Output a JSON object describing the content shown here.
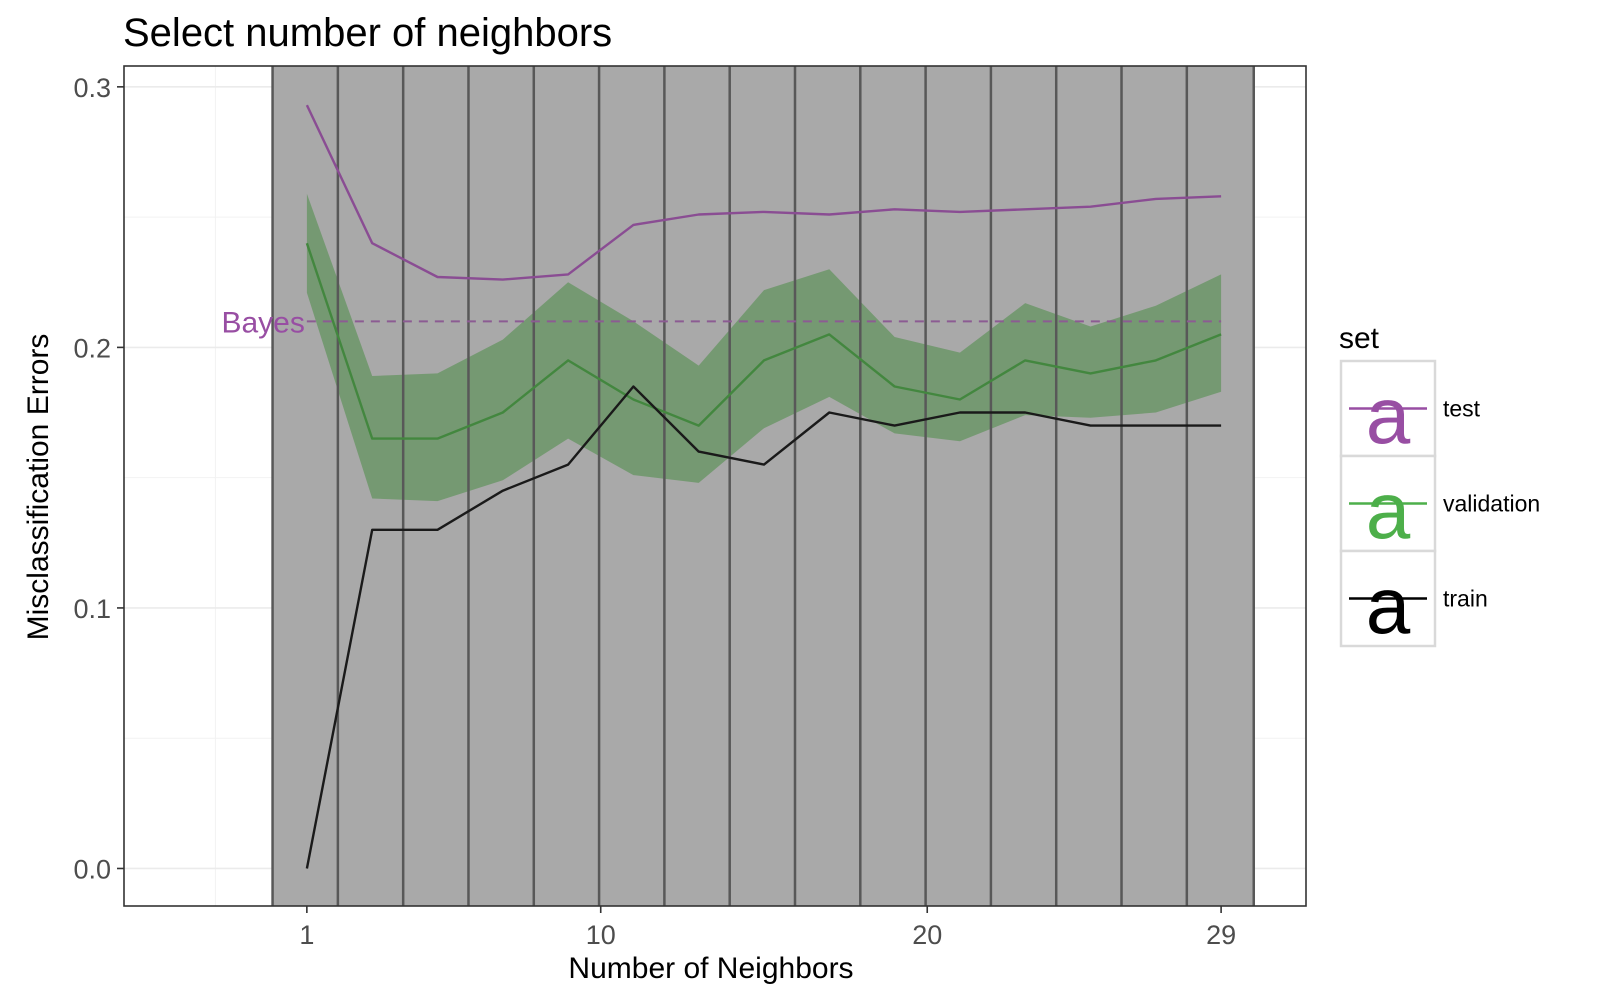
{
  "chart_data": {
    "type": "line",
    "title": "Select number of neighbors",
    "xlabel": "Number of Neighbors",
    "ylabel": "Misclassification Errors",
    "xlim": [
      -4.6,
      31.6
    ],
    "ylim": [
      -0.0144,
      0.308
    ],
    "x_ticks": [
      1,
      10,
      20,
      29
    ],
    "x_tick_labels": [
      "1",
      "10",
      "20",
      "29"
    ],
    "y_ticks": [
      0.0,
      0.1,
      0.2,
      0.3
    ],
    "y_tick_labels": [
      "0.0",
      "0.1",
      "0.2",
      "0.3"
    ],
    "grid": true,
    "x": [
      1,
      3,
      5,
      7,
      9,
      11,
      13,
      15,
      17,
      19,
      21,
      23,
      25,
      27,
      29
    ],
    "series": [
      {
        "name": "test",
        "color": "#984ea3",
        "values": [
          0.293,
          0.24,
          0.227,
          0.226,
          0.228,
          0.247,
          0.251,
          0.252,
          0.251,
          0.253,
          0.252,
          0.253,
          0.254,
          0.257,
          0.258
        ]
      },
      {
        "name": "validation",
        "color": "#4daf4a",
        "values": [
          0.24,
          0.165,
          0.165,
          0.175,
          0.195,
          0.18,
          0.17,
          0.195,
          0.205,
          0.185,
          0.18,
          0.195,
          0.19,
          0.195,
          0.205
        ],
        "band_lower": [
          0.221,
          0.142,
          0.141,
          0.149,
          0.165,
          0.151,
          0.148,
          0.169,
          0.181,
          0.167,
          0.164,
          0.174,
          0.173,
          0.175,
          0.183
        ],
        "band_upper": [
          0.259,
          0.189,
          0.19,
          0.203,
          0.225,
          0.21,
          0.193,
          0.222,
          0.23,
          0.204,
          0.198,
          0.217,
          0.208,
          0.216,
          0.228
        ]
      },
      {
        "name": "train",
        "color": "#000000",
        "values": [
          0.0,
          0.13,
          0.13,
          0.145,
          0.155,
          0.185,
          0.16,
          0.155,
          0.175,
          0.17,
          0.175,
          0.175,
          0.17,
          0.17,
          0.17
        ]
      }
    ],
    "reference_line": {
      "label": "Bayes",
      "value": 0.21,
      "color": "#984ea3",
      "style": "dashed"
    },
    "shaded_region": {
      "x_from": -0.05,
      "x_to": 30.0,
      "color": "#a9a9a9"
    },
    "fold_lines_x": [
      -0.05,
      1.95,
      3.95,
      5.95,
      7.95,
      9.95,
      11.95,
      13.95,
      15.95,
      17.95,
      19.95,
      21.95,
      23.95,
      25.95,
      27.95,
      30.0
    ],
    "legend": {
      "title": "set",
      "glyph": "a",
      "position": "right",
      "items": [
        "test",
        "validation",
        "train"
      ]
    }
  }
}
